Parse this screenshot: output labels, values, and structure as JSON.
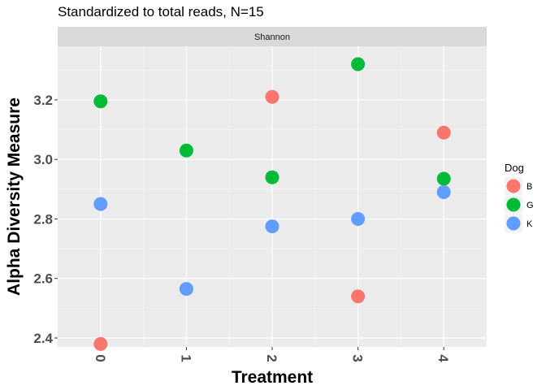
{
  "chart_data": {
    "type": "scatter",
    "title": "Standardized to total reads, N=15",
    "facet": "Shannon",
    "xlabel": "Treatment",
    "ylabel": "Alpha Diversity Measure",
    "categories": [
      "0",
      "1",
      "2",
      "3",
      "4"
    ],
    "ylim": [
      2.37,
      3.38
    ],
    "yticks": [
      "2.4",
      "2.6",
      "2.8",
      "3.0",
      "3.2"
    ],
    "legend": {
      "title": "Dog",
      "placement": "right"
    },
    "grid": true,
    "series": [
      {
        "name": "B",
        "color": "#F8766D",
        "values": [
          2.38,
          null,
          3.21,
          2.54,
          3.09
        ]
      },
      {
        "name": "G",
        "color": "#00BA38",
        "values": [
          3.195,
          3.03,
          2.94,
          3.32,
          2.935
        ]
      },
      {
        "name": "K",
        "color": "#619CFF",
        "values": [
          2.85,
          2.565,
          2.775,
          2.8,
          2.89
        ]
      }
    ]
  }
}
